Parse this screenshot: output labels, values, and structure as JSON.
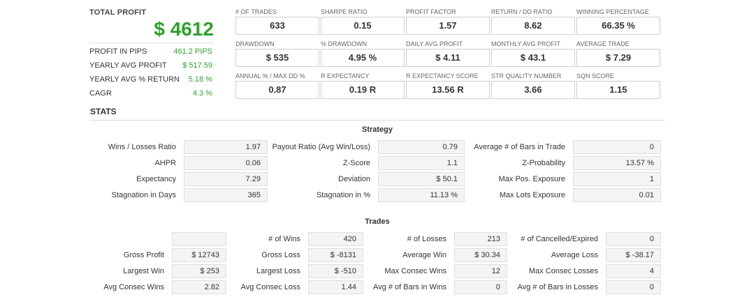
{
  "summary": {
    "total_profit_label": "TOTAL PROFIT",
    "total_profit_value": "$ 4612",
    "rows": [
      {
        "label": "PROFIT IN PIPS",
        "value": "461.2 PIPS"
      },
      {
        "label": "YEARLY AVG PROFIT",
        "value": "$ 517.59"
      },
      {
        "label": "YEARLY AVG % RETURN",
        "value": "5.18 %"
      },
      {
        "label": "CAGR",
        "value": "4.3 %"
      }
    ],
    "accent_color": "#2ea02e"
  },
  "metrics": [
    {
      "label": "# OF TRADES",
      "value": "633"
    },
    {
      "label": "SHARPE RATIO",
      "value": "0.15"
    },
    {
      "label": "PROFIT FACTOR",
      "value": "1.57"
    },
    {
      "label": "RETURN / DD RATIO",
      "value": "8.62"
    },
    {
      "label": "WINNING PERCENTAGE",
      "value": "66.35 %"
    },
    {
      "label": "DRAWDOWN",
      "value": "$ 535"
    },
    {
      "label": "% DRAWDOWN",
      "value": "4.95 %"
    },
    {
      "label": "DAILY AVG PROFIT",
      "value": "$ 4.11"
    },
    {
      "label": "MONTHLY AVG PROFIT",
      "value": "$ 43.1"
    },
    {
      "label": "AVERAGE TRADE",
      "value": "$ 7.29"
    },
    {
      "label": "ANNUAL % / MAX DD %",
      "value": "0.87"
    },
    {
      "label": "R EXPECTANCY",
      "value": "0.19 R"
    },
    {
      "label": "R EXPECTANCY SCORE",
      "value": "13.56 R"
    },
    {
      "label": "STR QUALITY NUMBER",
      "value": "3.66"
    },
    {
      "label": "SQN SCORE",
      "value": "1.15"
    }
  ],
  "stats_title": "STATS",
  "strategy": {
    "title": "Strategy",
    "rows": [
      [
        {
          "label": "Wins / Losses Ratio",
          "value": "1.97"
        },
        {
          "label": "Payout Ratio (Avg Win/Loss)",
          "value": "0.79"
        },
        {
          "label": "Average # of Bars in Trade",
          "value": "0"
        }
      ],
      [
        {
          "label": "AHPR",
          "value": "0.06"
        },
        {
          "label": "Z-Score",
          "value": "1.1"
        },
        {
          "label": "Z-Probability",
          "value": "13.57 %"
        }
      ],
      [
        {
          "label": "Expectancy",
          "value": "7.29"
        },
        {
          "label": "Deviation",
          "value": "$ 50.1"
        },
        {
          "label": "Max Pos. Exposure",
          "value": "1"
        }
      ],
      [
        {
          "label": "Stagnation in Days",
          "value": "365"
        },
        {
          "label": "Stagnation in %",
          "value": "11.13 %"
        },
        {
          "label": "Max Lots Exposure",
          "value": "0.01"
        }
      ]
    ]
  },
  "trades": {
    "title": "Trades",
    "rows": [
      [
        {
          "label": "",
          "value": ""
        },
        {
          "label": "# of Wins",
          "value": "420"
        },
        {
          "label": "# of Losses",
          "value": "213"
        },
        {
          "label": "# of Cancelled/Expired",
          "value": "0"
        }
      ],
      [
        {
          "label": "Gross Profit",
          "value": "$ 12743"
        },
        {
          "label": "Gross Loss",
          "value": "$ -8131"
        },
        {
          "label": "Average Win",
          "value": "$ 30.34"
        },
        {
          "label": "Average Loss",
          "value": "$ -38.17"
        }
      ],
      [
        {
          "label": "Largest Win",
          "value": "$ 253"
        },
        {
          "label": "Largest Loss",
          "value": "$ -510"
        },
        {
          "label": "Max Consec Wins",
          "value": "12"
        },
        {
          "label": "Max Consec Losses",
          "value": "4"
        }
      ],
      [
        {
          "label": "Avg Consec Wins",
          "value": "2.82"
        },
        {
          "label": "Avg Consec Loss",
          "value": "1.44"
        },
        {
          "label": "Avg # of Bars in Wins",
          "value": "0"
        },
        {
          "label": "Avg # of Bars in Losses",
          "value": "0"
        }
      ]
    ]
  }
}
